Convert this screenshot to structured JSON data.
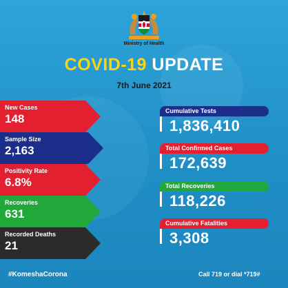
{
  "header": {
    "ministry": "Ministry of Health",
    "title_part1": "COVID-19",
    "title_part2": "UPDATE",
    "date": "7th June 2021"
  },
  "daily": [
    {
      "label": "New Cases",
      "value": "148",
      "color": "#e3202f"
    },
    {
      "label": "Sample Size",
      "value": "2,163",
      "color": "#1b2f8a"
    },
    {
      "label": "Positivity Rate",
      "value": "6.8%",
      "color": "#e3202f"
    },
    {
      "label": "Recoveries",
      "value": "631",
      "color": "#20a83a"
    },
    {
      "label": "Recorded Deaths",
      "value": "21",
      "color": "#2b2b2b"
    }
  ],
  "cumulative": [
    {
      "label": "Cumulative Tests",
      "value": "1,836,410",
      "color": "#1b2f8a"
    },
    {
      "label": "Total Confirmed Cases",
      "value": "172,639",
      "color": "#e3202f"
    },
    {
      "label": "Total Recoveries",
      "value": "118,226",
      "color": "#20a83a"
    },
    {
      "label": "Cumulative Fatalities",
      "value": "3,308",
      "color": "#e3202f"
    }
  ],
  "footer": {
    "hashtag": "#KomeshaCorona",
    "hotline": "Call 719 or dial *719#"
  },
  "icons": {
    "seal": "kenya-coat-of-arms-icon"
  }
}
